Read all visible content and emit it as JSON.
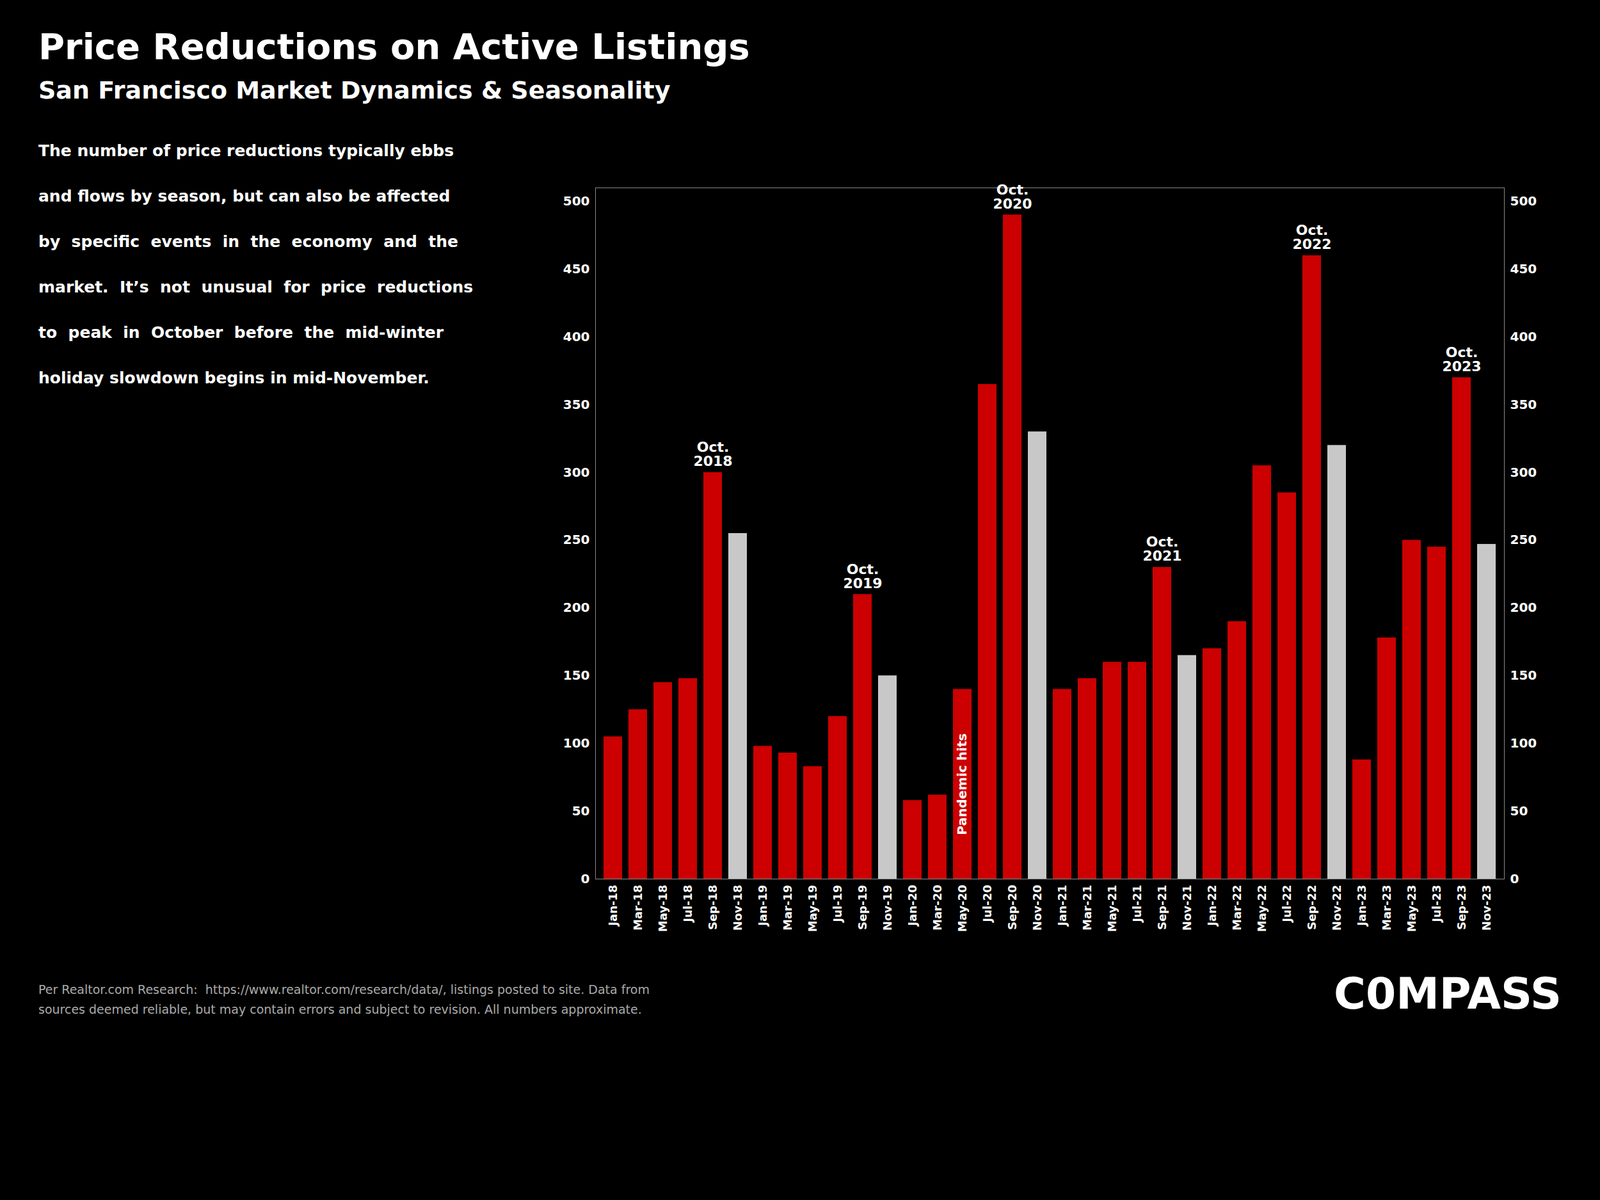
{
  "chart_data": {
    "type": "bar",
    "title": "Price Reductions on Active Listings",
    "subtitle": "San Francisco Market Dynamics & Seasonality",
    "description": [
      "The number of price reductions typically ebbs",
      "and flows by season, but can also be affected",
      "by  specific  events  in  the  economy  and  the",
      "market.  It’s  not  unusual  for  price  reductions",
      "to  peak  in  October  before  the  mid-winter",
      "holiday slowdown begins in mid-November."
    ],
    "caption": "Per Realtor.com Research:  https://www.realtor.com/research/data/, listings posted to site. Data from\nsources deemed reliable, but may contain errors and subject to revision. All numbers approximate.",
    "logo": "C0MPASS",
    "categories": [
      "Jan-18",
      "Mar-18",
      "May-18",
      "Jul-18",
      "Sep-18",
      "Nov-18",
      "Jan-19",
      "Mar-19",
      "May-19",
      "Jul-19",
      "Sep-19",
      "Nov-19",
      "Jan-20",
      "Mar-20",
      "May-20",
      "Jul-20",
      "Sep-20",
      "Nov-20",
      "Jan-21",
      "Mar-21",
      "May-21",
      "Jul-21",
      "Sep-21",
      "Nov-21",
      "Jan-22",
      "Mar-22",
      "May-22",
      "Jul-22",
      "Sep-22",
      "Nov-22",
      "Jan-23",
      "Mar-23",
      "May-23",
      "Jul-23",
      "Sep-23",
      "Nov-23"
    ],
    "values": [
      105,
      125,
      145,
      148,
      300,
      255,
      98,
      93,
      83,
      120,
      210,
      150,
      58,
      62,
      140,
      365,
      490,
      330,
      140,
      148,
      160,
      160,
      230,
      165,
      170,
      190,
      305,
      285,
      460,
      320,
      88,
      178,
      250,
      245,
      370,
      247
    ],
    "colors": [
      "#cc0000",
      "#cc0000",
      "#cc0000",
      "#cc0000",
      "#cc0000",
      "#c8c8c8",
      "#cc0000",
      "#cc0000",
      "#cc0000",
      "#cc0000",
      "#cc0000",
      "#c8c8c8",
      "#cc0000",
      "#cc0000",
      "#cc0000",
      "#cc0000",
      "#cc0000",
      "#c8c8c8",
      "#cc0000",
      "#cc0000",
      "#cc0000",
      "#cc0000",
      "#cc0000",
      "#c8c8c8",
      "#cc0000",
      "#cc0000",
      "#cc0000",
      "#cc0000",
      "#cc0000",
      "#c8c8c8",
      "#cc0000",
      "#cc0000",
      "#cc0000",
      "#cc0000",
      "#cc0000",
      "#c8c8c8"
    ],
    "ylim": [
      0,
      510
    ],
    "yticks": [
      0,
      50,
      100,
      150,
      200,
      250,
      300,
      350,
      400,
      450,
      500
    ],
    "grid": true,
    "annotations": [
      {
        "category": "Sep-18",
        "text": "Oct.\n2018",
        "position": "above"
      },
      {
        "category": "Sep-19",
        "text": "Oct.\n2019",
        "position": "above"
      },
      {
        "category": "Sep-20",
        "text": "Oct.\n2020",
        "position": "above"
      },
      {
        "category": "Sep-21",
        "text": "Oct.\n2021",
        "position": "above"
      },
      {
        "category": "Sep-22",
        "text": "Oct.\n2022",
        "position": "above"
      },
      {
        "category": "Sep-23",
        "text": "Oct.\n2023",
        "position": "above"
      },
      {
        "category": "May-20",
        "text": "Pandemic hits",
        "position": "inside"
      }
    ]
  }
}
